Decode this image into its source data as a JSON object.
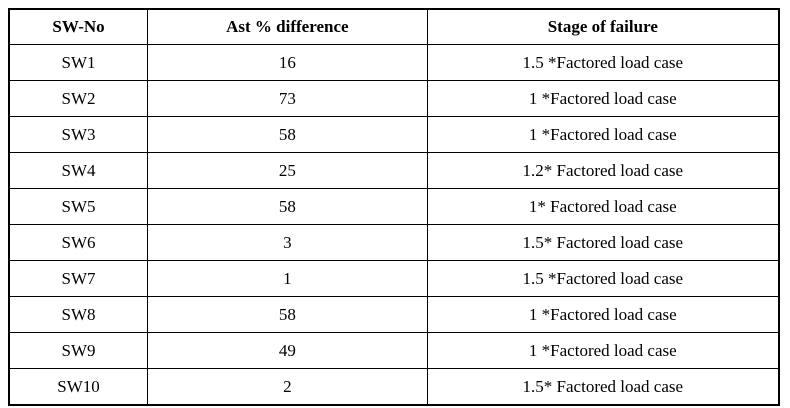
{
  "table": {
    "columns": [
      "SW-No",
      "Ast % difference",
      "Stage of failure"
    ],
    "rows": [
      [
        "SW1",
        "16",
        "1.5 *Factored load case"
      ],
      [
        "SW2",
        "73",
        "1 *Factored load case"
      ],
      [
        "SW3",
        "58",
        "1 *Factored load case"
      ],
      [
        "SW4",
        "25",
        "1.2* Factored load case"
      ],
      [
        "SW5",
        "58",
        "1* Factored load case"
      ],
      [
        "SW6",
        "3",
        "1.5* Factored load case"
      ],
      [
        "SW7",
        "1",
        "1.5 *Factored load case"
      ],
      [
        "SW8",
        "58",
        "1 *Factored load case"
      ],
      [
        "SW9",
        "49",
        "1 *Factored load case"
      ],
      [
        "SW10",
        "2",
        "1.5* Factored load case"
      ]
    ]
  },
  "colors": {
    "border": "#000000",
    "background": "#ffffff",
    "text": "#000000"
  }
}
